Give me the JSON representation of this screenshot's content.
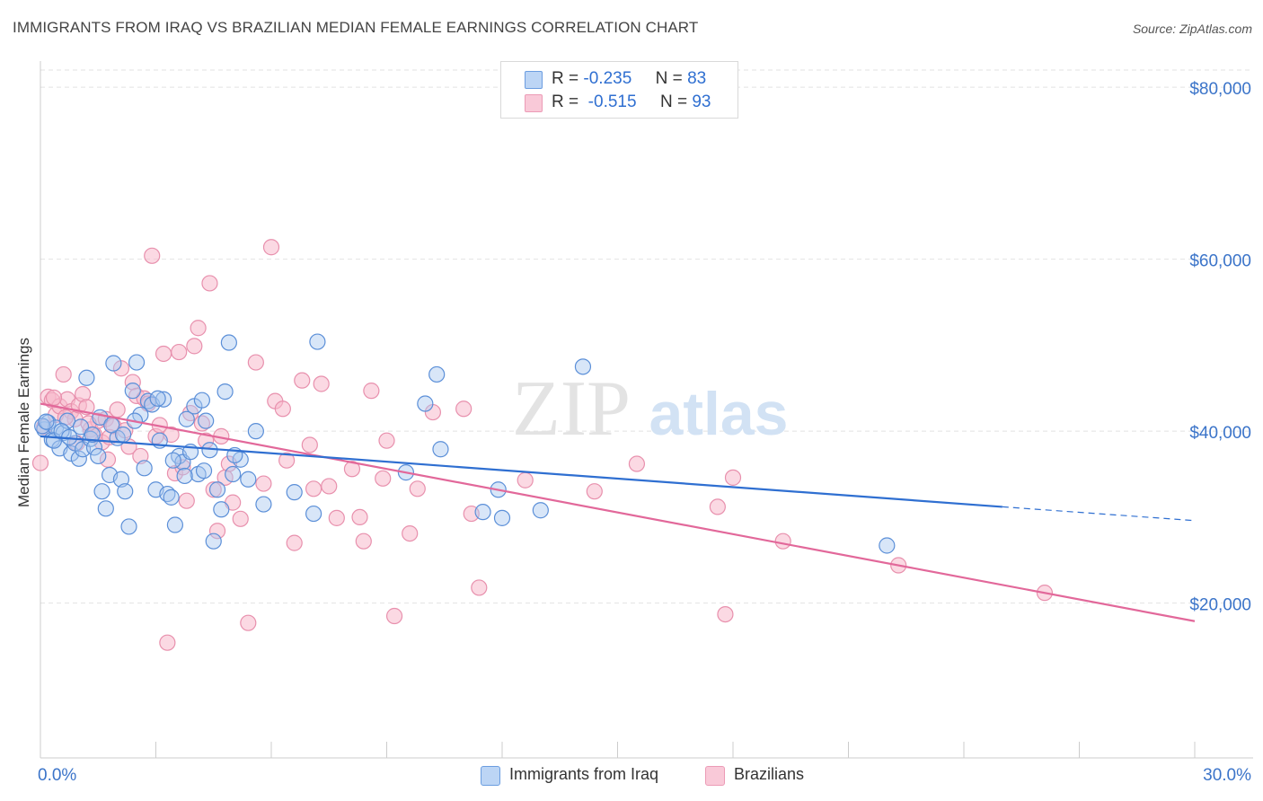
{
  "title": "IMMIGRANTS FROM IRAQ VS BRAZILIAN MEDIAN FEMALE EARNINGS CORRELATION CHART",
  "source": "Source: ZipAtlas.com",
  "watermark": {
    "zip": "ZIP",
    "atlas": "atlas"
  },
  "legend": {
    "rows": [
      {
        "r_label": "R =",
        "r_value": "-0.235",
        "n_label": "N =",
        "n_value": "83"
      },
      {
        "r_label": "R =",
        "r_value": "-0.515",
        "n_label": "N =",
        "n_value": "93"
      }
    ]
  },
  "bottom_legend": {
    "iraq": "Immigrants from Iraq",
    "brazil": "Brazilians"
  },
  "colors": {
    "iraq_fill": "#a9c8f0",
    "iraq_stroke": "#5b8fd8",
    "iraq_line": "#2f6fd1",
    "brazil_fill": "#f7b9cc",
    "brazil_stroke": "#e890ad",
    "brazil_line": "#e2689a",
    "axis_label": "#3b74c9",
    "grid": "#e2e2e2"
  },
  "chart_data": {
    "type": "scatter",
    "title": "IMMIGRANTS FROM IRAQ VS BRAZILIAN MEDIAN FEMALE EARNINGS CORRELATION CHART",
    "xlabel": "",
    "ylabel": "Median Female Earnings",
    "xlim": [
      0,
      30
    ],
    "ylim": [
      2000,
      82000
    ],
    "x_tick_labels": [
      "0.0%",
      "30.0%"
    ],
    "y_ticks": [
      20000,
      40000,
      60000,
      80000
    ],
    "y_tick_labels": [
      "$20,000",
      "$40,000",
      "$60,000",
      "$80,000"
    ],
    "grid": true,
    "legend_position": "top-center",
    "series": [
      {
        "name": "Immigrants from Iraq",
        "R": -0.235,
        "N": 83,
        "trend": {
          "x0": 0,
          "y0": 39400,
          "x1": 25.0,
          "y1": 31200,
          "dash_x1": 30.0,
          "dash_y1": 29600
        },
        "points": [
          [
            0.1,
            40200
          ],
          [
            0.2,
            41000
          ],
          [
            0.3,
            39000
          ],
          [
            0.4,
            40400
          ],
          [
            0.5,
            38000
          ],
          [
            0.6,
            39800
          ],
          [
            0.7,
            41200
          ],
          [
            0.8,
            37400
          ],
          [
            0.9,
            38600
          ],
          [
            1.0,
            36800
          ],
          [
            1.1,
            37900
          ],
          [
            1.2,
            46200
          ],
          [
            1.3,
            39100
          ],
          [
            1.4,
            38100
          ],
          [
            1.5,
            37100
          ],
          [
            1.6,
            33000
          ],
          [
            1.7,
            31000
          ],
          [
            1.8,
            34900
          ],
          [
            1.9,
            47900
          ],
          [
            2.0,
            39200
          ],
          [
            2.1,
            34400
          ],
          [
            2.2,
            33000
          ],
          [
            2.3,
            28900
          ],
          [
            2.4,
            44700
          ],
          [
            2.5,
            48000
          ],
          [
            2.6,
            41900
          ],
          [
            2.7,
            35700
          ],
          [
            2.8,
            43500
          ],
          [
            2.9,
            43100
          ],
          [
            3.0,
            33200
          ],
          [
            3.1,
            38900
          ],
          [
            3.2,
            43700
          ],
          [
            3.3,
            32700
          ],
          [
            3.4,
            32300
          ],
          [
            3.5,
            29100
          ],
          [
            3.6,
            37100
          ],
          [
            3.7,
            36400
          ],
          [
            3.8,
            41400
          ],
          [
            3.9,
            37600
          ],
          [
            4.0,
            42900
          ],
          [
            4.1,
            35000
          ],
          [
            4.2,
            43600
          ],
          [
            4.3,
            41200
          ],
          [
            4.4,
            37800
          ],
          [
            4.5,
            27200
          ],
          [
            4.6,
            33200
          ],
          [
            4.7,
            30900
          ],
          [
            4.8,
            44600
          ],
          [
            4.9,
            50300
          ],
          [
            5.0,
            35000
          ],
          [
            5.2,
            36700
          ],
          [
            5.4,
            34400
          ],
          [
            5.6,
            40000
          ],
          [
            5.8,
            31500
          ],
          [
            6.6,
            32900
          ],
          [
            7.1,
            30400
          ],
          [
            7.2,
            50400
          ],
          [
            9.5,
            35200
          ],
          [
            10.0,
            43200
          ],
          [
            10.3,
            46600
          ],
          [
            10.4,
            37900
          ],
          [
            11.5,
            30600
          ],
          [
            11.9,
            33200
          ],
          [
            12.0,
            29900
          ],
          [
            13.0,
            30800
          ],
          [
            14.1,
            47500
          ],
          [
            22.0,
            26700
          ],
          [
            0.05,
            40600
          ],
          [
            0.15,
            41100
          ],
          [
            0.35,
            38900
          ],
          [
            0.55,
            40000
          ],
          [
            0.75,
            39300
          ],
          [
            1.05,
            40500
          ],
          [
            1.35,
            39600
          ],
          [
            1.55,
            41600
          ],
          [
            1.85,
            40700
          ],
          [
            2.15,
            39600
          ],
          [
            2.45,
            41200
          ],
          [
            3.05,
            43800
          ],
          [
            3.45,
            36600
          ],
          [
            3.75,
            34800
          ],
          [
            4.25,
            35400
          ],
          [
            5.05,
            37200
          ]
        ]
      },
      {
        "name": "Brazilians",
        "R": -0.515,
        "N": 93,
        "trend": {
          "x0": 0,
          "y0": 43200,
          "x1": 30.0,
          "y1": 17900
        },
        "points": [
          [
            0.0,
            36300
          ],
          [
            0.2,
            44000
          ],
          [
            0.3,
            43600
          ],
          [
            0.4,
            41900
          ],
          [
            0.5,
            42900
          ],
          [
            0.6,
            46600
          ],
          [
            0.7,
            43700
          ],
          [
            0.8,
            42300
          ],
          [
            0.9,
            41400
          ],
          [
            1.0,
            43000
          ],
          [
            1.1,
            44300
          ],
          [
            1.2,
            42800
          ],
          [
            1.3,
            40200
          ],
          [
            1.4,
            39600
          ],
          [
            1.5,
            41200
          ],
          [
            1.6,
            38700
          ],
          [
            1.7,
            41400
          ],
          [
            1.8,
            39300
          ],
          [
            1.9,
            40600
          ],
          [
            2.0,
            42500
          ],
          [
            2.1,
            47300
          ],
          [
            2.2,
            40100
          ],
          [
            2.3,
            38200
          ],
          [
            2.4,
            45700
          ],
          [
            2.5,
            44100
          ],
          [
            2.6,
            37100
          ],
          [
            2.7,
            43800
          ],
          [
            2.8,
            43200
          ],
          [
            2.9,
            60400
          ],
          [
            3.0,
            39400
          ],
          [
            3.1,
            40700
          ],
          [
            3.2,
            49000
          ],
          [
            3.3,
            15400
          ],
          [
            3.4,
            39600
          ],
          [
            3.5,
            35100
          ],
          [
            3.6,
            49200
          ],
          [
            3.7,
            35800
          ],
          [
            3.8,
            31900
          ],
          [
            3.9,
            42100
          ],
          [
            4.0,
            49900
          ],
          [
            4.1,
            52000
          ],
          [
            4.2,
            40900
          ],
          [
            4.3,
            38900
          ],
          [
            4.4,
            57200
          ],
          [
            4.5,
            33200
          ],
          [
            4.6,
            28400
          ],
          [
            4.7,
            39400
          ],
          [
            4.8,
            34600
          ],
          [
            4.9,
            36200
          ],
          [
            5.0,
            31700
          ],
          [
            5.2,
            29800
          ],
          [
            5.4,
            17700
          ],
          [
            5.6,
            48000
          ],
          [
            5.8,
            33900
          ],
          [
            6.0,
            61400
          ],
          [
            6.1,
            43500
          ],
          [
            6.3,
            42600
          ],
          [
            6.4,
            36600
          ],
          [
            6.6,
            27000
          ],
          [
            6.8,
            45900
          ],
          [
            7.0,
            38400
          ],
          [
            7.1,
            33300
          ],
          [
            7.3,
            45500
          ],
          [
            7.5,
            33600
          ],
          [
            7.7,
            29900
          ],
          [
            8.1,
            35600
          ],
          [
            8.3,
            30000
          ],
          [
            8.4,
            27200
          ],
          [
            8.6,
            44700
          ],
          [
            8.9,
            34500
          ],
          [
            9.0,
            38900
          ],
          [
            9.2,
            18500
          ],
          [
            9.6,
            28100
          ],
          [
            9.8,
            33300
          ],
          [
            10.2,
            42200
          ],
          [
            11.0,
            42600
          ],
          [
            11.2,
            30400
          ],
          [
            11.4,
            21800
          ],
          [
            12.6,
            34300
          ],
          [
            14.4,
            33000
          ],
          [
            15.5,
            36200
          ],
          [
            17.6,
            31200
          ],
          [
            17.8,
            18700
          ],
          [
            18.0,
            34600
          ],
          [
            19.3,
            27200
          ],
          [
            22.3,
            24400
          ],
          [
            26.1,
            21200
          ],
          [
            0.1,
            40500
          ],
          [
            0.35,
            43900
          ],
          [
            0.65,
            41600
          ],
          [
            0.95,
            38600
          ],
          [
            1.25,
            40900
          ],
          [
            1.75,
            36700
          ]
        ]
      }
    ]
  }
}
